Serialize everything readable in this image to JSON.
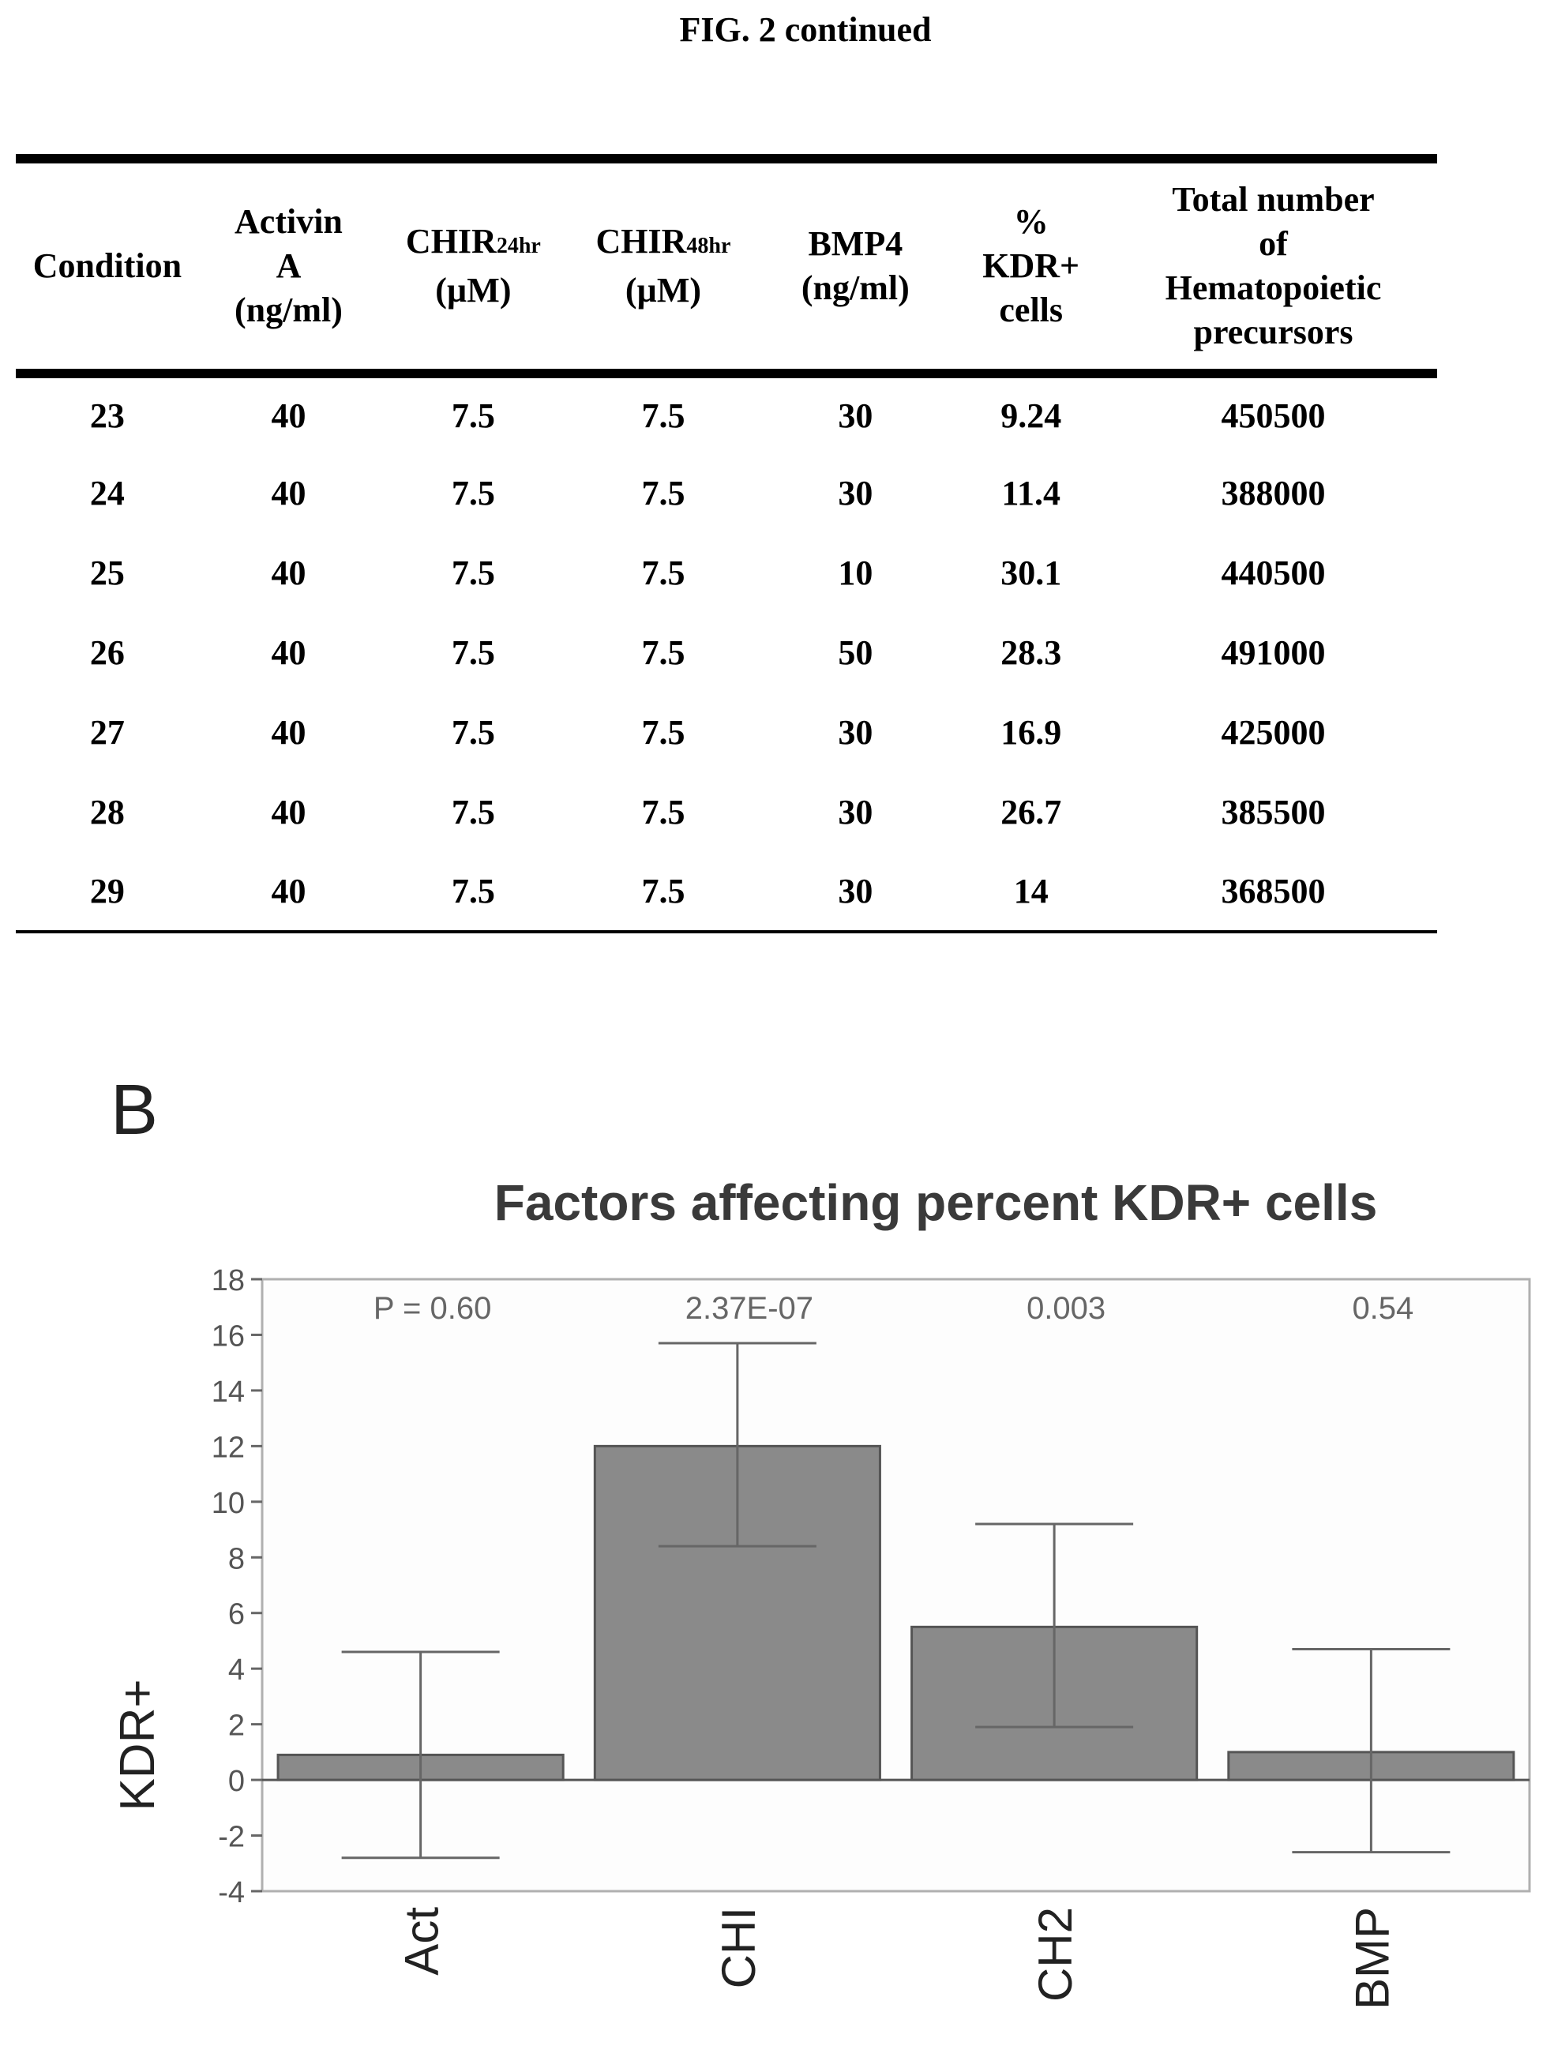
{
  "figure": {
    "title": "FIG. 2 continued"
  },
  "table": {
    "headers": [
      {
        "lines": [
          "Condition"
        ]
      },
      {
        "lines": [
          "Activin",
          "A",
          "(ng/ml)"
        ]
      },
      {
        "lines": [
          "CHIR",
          "(µM)"
        ],
        "sub": "24hr"
      },
      {
        "lines": [
          "CHIR",
          "(µM)"
        ],
        "sub": "48hr"
      },
      {
        "lines": [
          "BMP4",
          "(ng/ml)"
        ]
      },
      {
        "lines": [
          "%",
          "KDR+",
          "cells"
        ]
      },
      {
        "lines": [
          "Total number",
          "of",
          "Hematopoietic",
          "precursors"
        ]
      }
    ],
    "rows": [
      [
        "23",
        "40",
        "7.5",
        "7.5",
        "30",
        "9.24",
        "450500"
      ],
      [
        "24",
        "40",
        "7.5",
        "7.5",
        "30",
        "11.4",
        "388000"
      ],
      [
        "25",
        "40",
        "7.5",
        "7.5",
        "10",
        "30.1",
        "440500"
      ],
      [
        "26",
        "40",
        "7.5",
        "7.5",
        "50",
        "28.3",
        "491000"
      ],
      [
        "27",
        "40",
        "7.5",
        "7.5",
        "30",
        "16.9",
        "425000"
      ],
      [
        "28",
        "40",
        "7.5",
        "7.5",
        "30",
        "26.7",
        "385500"
      ],
      [
        "29",
        "40",
        "7.5",
        "7.5",
        "30",
        "14",
        "368500"
      ]
    ]
  },
  "panel": {
    "label": "B"
  },
  "chart_data": {
    "type": "bar",
    "title": "Factors affecting percent KDR+ cells",
    "xlabel": "",
    "ylabel": "KDR+",
    "ylim": [
      -4,
      18
    ],
    "yticks": [
      -4,
      -2,
      0,
      2,
      4,
      6,
      8,
      10,
      12,
      14,
      16,
      18
    ],
    "categories": [
      "Act",
      "CHI",
      "CH2",
      "BMP"
    ],
    "values": [
      0.9,
      12.0,
      5.5,
      1.0
    ],
    "error_low": [
      -2.8,
      8.4,
      1.9,
      -2.6
    ],
    "error_high": [
      4.6,
      15.7,
      9.2,
      4.7
    ],
    "p_labels": [
      "P = 0.60",
      "2.37E-07",
      "0.003",
      "0.54"
    ],
    "colors": {
      "bar": "#8a8a8a",
      "bar_stroke": "#555555",
      "frame": "#b0b0b0",
      "text": "#555555"
    }
  }
}
